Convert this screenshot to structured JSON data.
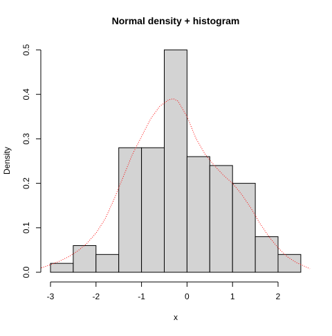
{
  "chart_data": {
    "type": "bar",
    "title": "Normal density + histogram",
    "xlabel": "x",
    "ylabel": "Density",
    "x_ticks": [
      -3,
      -2,
      -1,
      0,
      1,
      2
    ],
    "y_ticks": [
      0.0,
      0.1,
      0.2,
      0.3,
      0.4,
      0.5
    ],
    "x_tick_labels": [
      "-3",
      "-2",
      "-1",
      "0",
      "1",
      "2"
    ],
    "y_tick_labels": [
      "0.0",
      "0.1",
      "0.2",
      "0.3",
      "0.4",
      "0.5"
    ],
    "xlim": [
      -3.2,
      2.7
    ],
    "ylim": [
      0,
      0.5
    ],
    "bins": [
      {
        "x0": -3.0,
        "x1": -2.5,
        "density": 0.02
      },
      {
        "x0": -2.5,
        "x1": -2.0,
        "density": 0.06
      },
      {
        "x0": -2.0,
        "x1": -1.5,
        "density": 0.04
      },
      {
        "x0": -1.5,
        "x1": -1.0,
        "density": 0.28
      },
      {
        "x0": -1.0,
        "x1": -0.5,
        "density": 0.28
      },
      {
        "x0": -0.5,
        "x1": 0.0,
        "density": 0.5
      },
      {
        "x0": 0.0,
        "x1": 0.5,
        "density": 0.26
      },
      {
        "x0": 0.5,
        "x1": 1.0,
        "density": 0.24
      },
      {
        "x0": 1.0,
        "x1": 1.5,
        "density": 0.2
      },
      {
        "x0": 1.5,
        "x1": 2.0,
        "density": 0.08
      },
      {
        "x0": 2.0,
        "x1": 2.5,
        "density": 0.04
      }
    ],
    "density_curve": {
      "x": [
        -3.2,
        -3.0,
        -2.8,
        -2.6,
        -2.4,
        -2.2,
        -2.0,
        -1.8,
        -1.6,
        -1.4,
        -1.2,
        -1.0,
        -0.8,
        -0.6,
        -0.4,
        -0.3,
        -0.2,
        0.0,
        0.2,
        0.4,
        0.6,
        0.8,
        1.0,
        1.2,
        1.4,
        1.6,
        1.8,
        2.0,
        2.2,
        2.4,
        2.7
      ],
      "y": [
        0.01,
        0.017,
        0.025,
        0.035,
        0.048,
        0.065,
        0.088,
        0.12,
        0.165,
        0.215,
        0.265,
        0.305,
        0.345,
        0.373,
        0.388,
        0.39,
        0.385,
        0.35,
        0.3,
        0.265,
        0.24,
        0.218,
        0.2,
        0.175,
        0.145,
        0.11,
        0.08,
        0.055,
        0.035,
        0.022,
        0.008
      ]
    },
    "colors": {
      "bar_fill": "#d3d3d3",
      "bar_stroke": "#000000",
      "curve": "#ff0000",
      "axis": "#000000"
    },
    "grid": false,
    "legend": "none"
  }
}
